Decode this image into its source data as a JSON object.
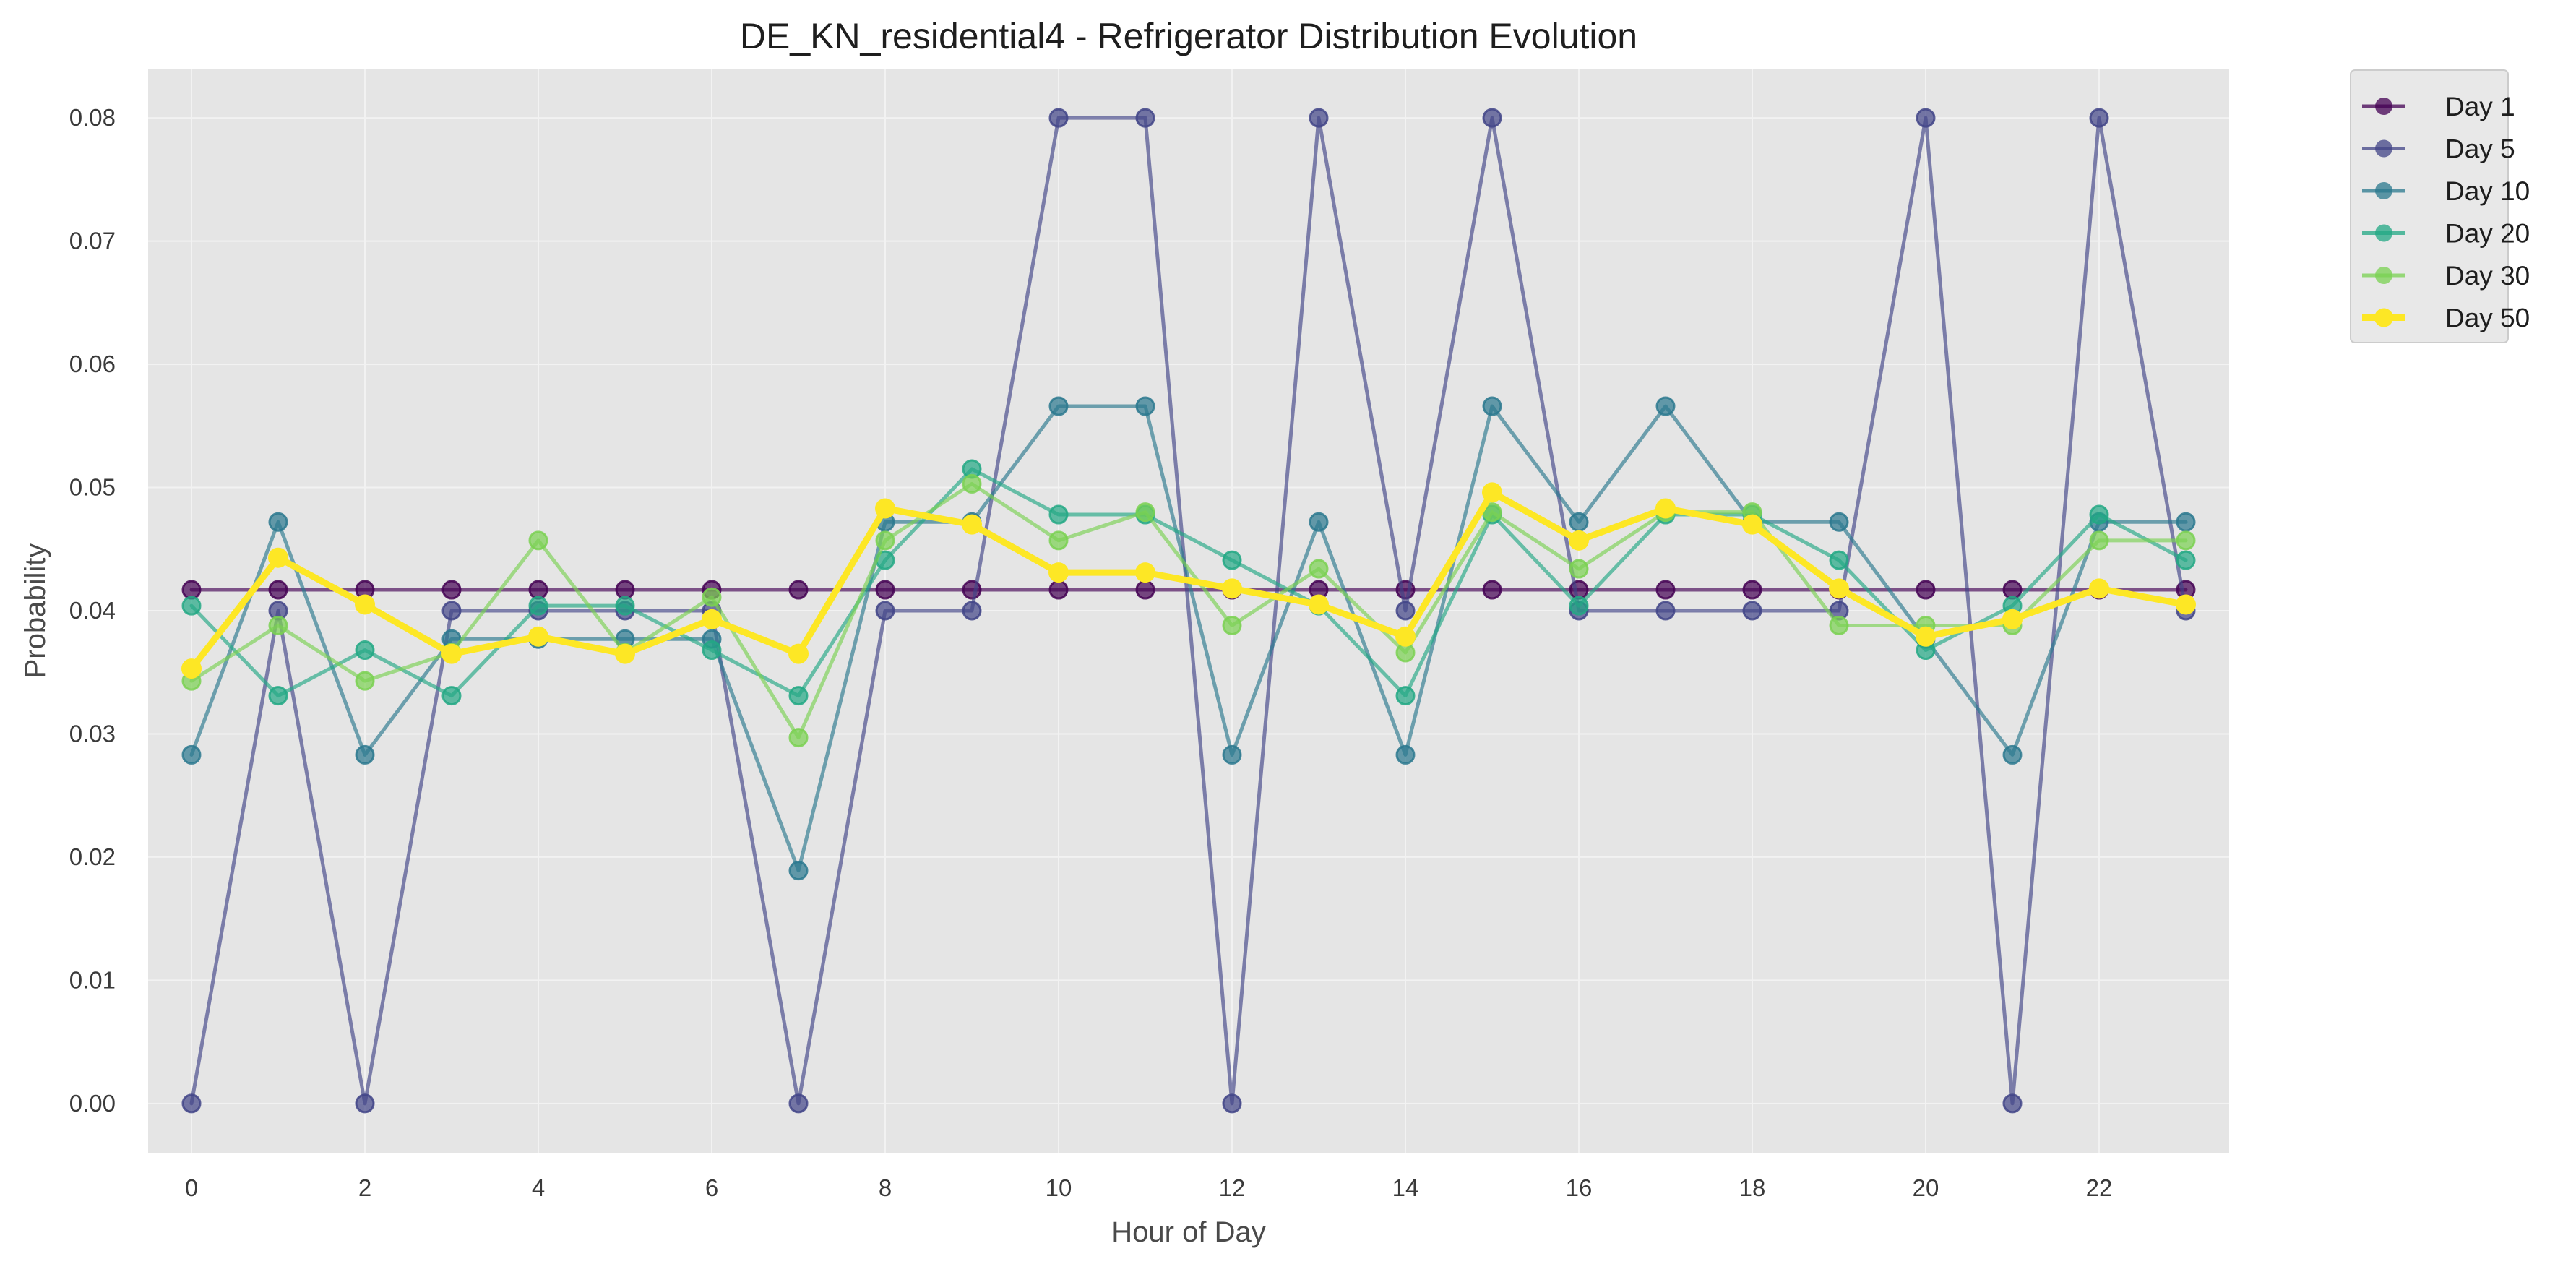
{
  "chart_data": {
    "type": "line",
    "title": "DE_KN_residential4 - Refrigerator Distribution Evolution",
    "xlabel": "Hour of Day",
    "ylabel": "Probability",
    "xlim": [
      -0.5,
      23.5
    ],
    "ylim": [
      -0.004,
      0.084
    ],
    "xticks": [
      0,
      2,
      4,
      6,
      8,
      10,
      12,
      14,
      16,
      18,
      20,
      22
    ],
    "yticks": [
      0.0,
      0.01,
      0.02,
      0.03,
      0.04,
      0.05,
      0.06,
      0.07,
      0.08
    ],
    "ytick_labels": [
      "0.00",
      "0.01",
      "0.02",
      "0.03",
      "0.04",
      "0.05",
      "0.06",
      "0.07",
      "0.08"
    ],
    "grid": true,
    "legend_position": "outside-top-right",
    "x": [
      0,
      1,
      2,
      3,
      4,
      5,
      6,
      7,
      8,
      9,
      10,
      11,
      12,
      13,
      14,
      15,
      16,
      17,
      18,
      19,
      20,
      21,
      22,
      23
    ],
    "series": [
      {
        "name": "Day 1",
        "color": "#440154",
        "emphasis": false,
        "values": [
          0.0417,
          0.0417,
          0.0417,
          0.0417,
          0.0417,
          0.0417,
          0.0417,
          0.0417,
          0.0417,
          0.0417,
          0.0417,
          0.0417,
          0.0417,
          0.0417,
          0.0417,
          0.0417,
          0.0417,
          0.0417,
          0.0417,
          0.0417,
          0.0417,
          0.0417,
          0.0417,
          0.0417
        ]
      },
      {
        "name": "Day 5",
        "color": "#414487",
        "emphasis": false,
        "values": [
          0.0,
          0.04,
          0.0,
          0.04,
          0.04,
          0.04,
          0.04,
          0.0,
          0.04,
          0.04,
          0.08,
          0.08,
          0.0,
          0.08,
          0.04,
          0.08,
          0.04,
          0.04,
          0.04,
          0.04,
          0.08,
          0.0,
          0.08,
          0.04
        ]
      },
      {
        "name": "Day 10",
        "color": "#2a788e",
        "emphasis": false,
        "values": [
          0.0283,
          0.0472,
          0.0283,
          0.0377,
          0.0377,
          0.0377,
          0.0377,
          0.0189,
          0.0472,
          0.0472,
          0.0566,
          0.0566,
          0.0283,
          0.0472,
          0.0283,
          0.0566,
          0.0472,
          0.0566,
          0.0472,
          0.0472,
          0.0377,
          0.0283,
          0.0472,
          0.0472
        ]
      },
      {
        "name": "Day 20",
        "color": "#22a884",
        "emphasis": false,
        "values": [
          0.0404,
          0.0331,
          0.0368,
          0.0331,
          0.0404,
          0.0404,
          0.0368,
          0.0331,
          0.0441,
          0.0515,
          0.0478,
          0.0478,
          0.0441,
          0.0404,
          0.0331,
          0.0478,
          0.0404,
          0.0478,
          0.0478,
          0.0441,
          0.0368,
          0.0404,
          0.0478,
          0.0441
        ]
      },
      {
        "name": "Day 30",
        "color": "#7ad151",
        "emphasis": false,
        "values": [
          0.0343,
          0.0388,
          0.0343,
          0.0366,
          0.0457,
          0.0366,
          0.0411,
          0.0297,
          0.0457,
          0.0503,
          0.0457,
          0.048,
          0.0388,
          0.0434,
          0.0366,
          0.048,
          0.0434,
          0.048,
          0.048,
          0.0388,
          0.0388,
          0.0388,
          0.0457,
          0.0457
        ]
      },
      {
        "name": "Day 50",
        "color": "#fde725",
        "emphasis": true,
        "values": [
          0.0353,
          0.0443,
          0.0405,
          0.0365,
          0.0379,
          0.0365,
          0.0393,
          0.0365,
          0.0483,
          0.047,
          0.0431,
          0.0431,
          0.0418,
          0.0405,
          0.0379,
          0.0496,
          0.0457,
          0.0483,
          0.047,
          0.0418,
          0.0379,
          0.0393,
          0.0418,
          0.0405
        ]
      }
    ]
  }
}
